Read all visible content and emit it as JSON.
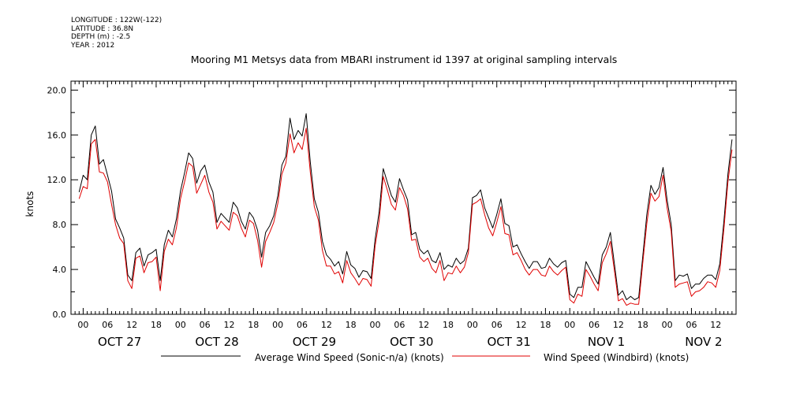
{
  "header": {
    "longitude": "LONGITUDE : 122W(-122)",
    "latitude": "LATITUDE : 36.8N",
    "depth": "DEPTH (m) : -2.5",
    "year": "YEAR : 2012"
  },
  "chart_data": {
    "type": "line",
    "title": "Mooring M1 Metsys data from MBARI instrument id 1397 at original sampling intervals",
    "ylabel": "knots",
    "xlabel": "",
    "ylim": [
      0,
      20.8
    ],
    "yticks": [
      "0.0",
      "4.0",
      "8.0",
      "12.0",
      "16.0",
      "20.0"
    ],
    "xlim_hours": [
      -3,
      161
    ],
    "hour_tick_labels": [
      "00",
      "06",
      "12",
      "18"
    ],
    "day_labels": [
      "OCT 27",
      "OCT 28",
      "OCT 29",
      "OCT 30",
      "OCT 31",
      "NOV  1",
      "NOV  2"
    ],
    "grid": false,
    "legend": "bottom",
    "series": [
      {
        "name": "Average Wind Speed (Sonic-n/a) (knots)",
        "color": "#000000",
        "points": [
          [
            -1,
            10.9
          ],
          [
            0,
            12.4
          ],
          [
            1,
            12.0
          ],
          [
            2,
            16.0
          ],
          [
            3,
            16.8
          ],
          [
            4,
            13.4
          ],
          [
            5,
            13.8
          ],
          [
            6,
            12.4
          ],
          [
            7,
            11.0
          ],
          [
            8,
            8.5
          ],
          [
            9,
            7.7
          ],
          [
            10,
            6.8
          ],
          [
            11,
            3.5
          ],
          [
            12,
            3.0
          ],
          [
            13,
            5.5
          ],
          [
            14,
            5.9
          ],
          [
            15,
            4.3
          ],
          [
            16,
            5.3
          ],
          [
            17,
            5.5
          ],
          [
            18,
            5.8
          ],
          [
            19,
            3.0
          ],
          [
            20,
            6.2
          ],
          [
            21,
            7.5
          ],
          [
            22,
            6.9
          ],
          [
            23,
            8.5
          ],
          [
            24,
            11.0
          ],
          [
            25,
            12.6
          ],
          [
            26,
            14.4
          ],
          [
            27,
            13.9
          ],
          [
            28,
            11.7
          ],
          [
            29,
            12.8
          ],
          [
            30,
            13.3
          ],
          [
            31,
            11.8
          ],
          [
            32,
            10.9
          ],
          [
            33,
            8.2
          ],
          [
            34,
            9.0
          ],
          [
            35,
            8.6
          ],
          [
            36,
            8.2
          ],
          [
            37,
            10.0
          ],
          [
            38,
            9.5
          ],
          [
            39,
            8.3
          ],
          [
            40,
            7.6
          ],
          [
            41,
            9.1
          ],
          [
            42,
            8.6
          ],
          [
            43,
            7.5
          ],
          [
            44,
            5.1
          ],
          [
            45,
            7.3
          ],
          [
            46,
            7.9
          ],
          [
            47,
            8.8
          ],
          [
            48,
            10.6
          ],
          [
            49,
            13.3
          ],
          [
            50,
            14.1
          ],
          [
            51,
            17.5
          ],
          [
            52,
            15.6
          ],
          [
            53,
            16.4
          ],
          [
            54,
            15.9
          ],
          [
            55,
            17.9
          ],
          [
            56,
            13.6
          ],
          [
            57,
            10.3
          ],
          [
            58,
            9.1
          ],
          [
            59,
            6.5
          ],
          [
            60,
            5.3
          ],
          [
            61,
            4.9
          ],
          [
            62,
            4.3
          ],
          [
            63,
            4.7
          ],
          [
            64,
            3.6
          ],
          [
            65,
            5.6
          ],
          [
            66,
            4.4
          ],
          [
            67,
            4.1
          ],
          [
            68,
            3.3
          ],
          [
            69,
            3.9
          ],
          [
            70,
            3.8
          ],
          [
            71,
            3.2
          ],
          [
            72,
            6.7
          ],
          [
            73,
            9.2
          ],
          [
            74,
            13.0
          ],
          [
            75,
            11.8
          ],
          [
            76,
            10.6
          ],
          [
            77,
            10.0
          ],
          [
            78,
            12.1
          ],
          [
            79,
            11.1
          ],
          [
            80,
            10.2
          ],
          [
            81,
            7.1
          ],
          [
            82,
            7.3
          ],
          [
            83,
            5.8
          ],
          [
            84,
            5.4
          ],
          [
            85,
            5.7
          ],
          [
            86,
            4.8
          ],
          [
            87,
            4.6
          ],
          [
            88,
            5.5
          ],
          [
            89,
            4.0
          ],
          [
            90,
            4.4
          ],
          [
            91,
            4.2
          ],
          [
            92,
            5.0
          ],
          [
            93,
            4.5
          ],
          [
            94,
            4.8
          ],
          [
            95,
            5.9
          ],
          [
            96,
            10.4
          ],
          [
            97,
            10.6
          ],
          [
            98,
            11.1
          ],
          [
            99,
            9.5
          ],
          [
            100,
            8.6
          ],
          [
            101,
            7.7
          ],
          [
            102,
            8.9
          ],
          [
            103,
            10.3
          ],
          [
            104,
            8.1
          ],
          [
            105,
            7.9
          ],
          [
            106,
            6.0
          ],
          [
            107,
            6.2
          ],
          [
            108,
            5.4
          ],
          [
            109,
            4.7
          ],
          [
            110,
            4.1
          ],
          [
            111,
            4.7
          ],
          [
            112,
            4.7
          ],
          [
            113,
            4.1
          ],
          [
            114,
            4.2
          ],
          [
            115,
            5.0
          ],
          [
            116,
            4.5
          ],
          [
            117,
            4.2
          ],
          [
            118,
            4.6
          ],
          [
            119,
            4.8
          ],
          [
            120,
            1.8
          ],
          [
            121,
            1.5
          ],
          [
            122,
            2.4
          ],
          [
            123,
            2.4
          ],
          [
            124,
            4.7
          ],
          [
            125,
            4.0
          ],
          [
            126,
            3.3
          ],
          [
            127,
            2.7
          ],
          [
            128,
            5.3
          ],
          [
            129,
            6.0
          ],
          [
            130,
            7.3
          ],
          [
            131,
            4.5
          ],
          [
            132,
            1.7
          ],
          [
            133,
            2.1
          ],
          [
            134,
            1.3
          ],
          [
            135,
            1.6
          ],
          [
            136,
            1.3
          ],
          [
            137,
            1.5
          ],
          [
            138,
            5.2
          ],
          [
            139,
            8.9
          ],
          [
            140,
            11.5
          ],
          [
            141,
            10.7
          ],
          [
            142,
            11.3
          ],
          [
            143,
            13.1
          ],
          [
            144,
            10.2
          ],
          [
            145,
            8.0
          ],
          [
            146,
            3.0
          ],
          [
            147,
            3.5
          ],
          [
            148,
            3.4
          ],
          [
            149,
            3.6
          ],
          [
            150,
            2.3
          ],
          [
            151,
            2.7
          ],
          [
            152,
            2.7
          ],
          [
            153,
            3.2
          ],
          [
            154,
            3.5
          ],
          [
            155,
            3.5
          ],
          [
            156,
            3.1
          ],
          [
            157,
            4.5
          ],
          [
            158,
            8.3
          ],
          [
            159,
            12.5
          ],
          [
            160,
            15.6
          ]
        ]
      },
      {
        "name": "Wind Speed (Windbird) (knots)",
        "color": "#e00000",
        "points": [
          [
            -1,
            10.3
          ],
          [
            0,
            11.4
          ],
          [
            1,
            11.2
          ],
          [
            2,
            15.2
          ],
          [
            3,
            15.6
          ],
          [
            4,
            12.7
          ],
          [
            5,
            12.6
          ],
          [
            6,
            11.8
          ],
          [
            7,
            9.8
          ],
          [
            8,
            8.0
          ],
          [
            9,
            6.8
          ],
          [
            10,
            6.3
          ],
          [
            11,
            3.0
          ],
          [
            12,
            2.3
          ],
          [
            13,
            5.0
          ],
          [
            14,
            5.2
          ],
          [
            15,
            3.7
          ],
          [
            16,
            4.6
          ],
          [
            17,
            4.7
          ],
          [
            18,
            5.1
          ],
          [
            19,
            2.1
          ],
          [
            20,
            5.6
          ],
          [
            21,
            6.7
          ],
          [
            22,
            6.2
          ],
          [
            23,
            7.7
          ],
          [
            24,
            10.3
          ],
          [
            25,
            11.8
          ],
          [
            26,
            13.5
          ],
          [
            27,
            13.2
          ],
          [
            28,
            10.8
          ],
          [
            29,
            11.6
          ],
          [
            30,
            12.4
          ],
          [
            31,
            10.9
          ],
          [
            32,
            10.0
          ],
          [
            33,
            7.6
          ],
          [
            34,
            8.3
          ],
          [
            35,
            7.9
          ],
          [
            36,
            7.5
          ],
          [
            37,
            9.1
          ],
          [
            38,
            8.8
          ],
          [
            39,
            7.7
          ],
          [
            40,
            6.9
          ],
          [
            41,
            8.4
          ],
          [
            42,
            8.1
          ],
          [
            43,
            6.6
          ],
          [
            44,
            4.2
          ],
          [
            45,
            6.5
          ],
          [
            46,
            7.3
          ],
          [
            47,
            8.2
          ],
          [
            48,
            9.9
          ],
          [
            49,
            12.5
          ],
          [
            50,
            13.5
          ],
          [
            51,
            16.1
          ],
          [
            52,
            14.4
          ],
          [
            53,
            15.3
          ],
          [
            54,
            14.7
          ],
          [
            55,
            16.6
          ],
          [
            56,
            12.7
          ],
          [
            57,
            9.6
          ],
          [
            58,
            8.4
          ],
          [
            59,
            5.7
          ],
          [
            60,
            4.3
          ],
          [
            61,
            4.3
          ],
          [
            62,
            3.6
          ],
          [
            63,
            3.8
          ],
          [
            64,
            2.8
          ],
          [
            65,
            4.8
          ],
          [
            66,
            3.7
          ],
          [
            67,
            3.2
          ],
          [
            68,
            2.6
          ],
          [
            69,
            3.2
          ],
          [
            70,
            3.1
          ],
          [
            71,
            2.5
          ],
          [
            72,
            6.1
          ],
          [
            73,
            8.4
          ],
          [
            74,
            12.3
          ],
          [
            75,
            11.1
          ],
          [
            76,
            9.8
          ],
          [
            77,
            9.3
          ],
          [
            78,
            11.3
          ],
          [
            79,
            10.6
          ],
          [
            80,
            9.4
          ],
          [
            81,
            6.6
          ],
          [
            82,
            6.7
          ],
          [
            83,
            5.1
          ],
          [
            84,
            4.7
          ],
          [
            85,
            5.0
          ],
          [
            86,
            4.1
          ],
          [
            87,
            3.7
          ],
          [
            88,
            4.8
          ],
          [
            89,
            3.0
          ],
          [
            90,
            3.7
          ],
          [
            91,
            3.6
          ],
          [
            92,
            4.3
          ],
          [
            93,
            3.7
          ],
          [
            94,
            4.2
          ],
          [
            95,
            5.5
          ],
          [
            96,
            9.8
          ],
          [
            97,
            10.0
          ],
          [
            98,
            10.3
          ],
          [
            99,
            8.9
          ],
          [
            100,
            7.7
          ],
          [
            101,
            7.0
          ],
          [
            102,
            8.2
          ],
          [
            103,
            9.6
          ],
          [
            104,
            7.2
          ],
          [
            105,
            7.1
          ],
          [
            106,
            5.3
          ],
          [
            107,
            5.5
          ],
          [
            108,
            4.8
          ],
          [
            109,
            4.0
          ],
          [
            110,
            3.5
          ],
          [
            111,
            4.0
          ],
          [
            112,
            4.0
          ],
          [
            113,
            3.5
          ],
          [
            114,
            3.4
          ],
          [
            115,
            4.3
          ],
          [
            116,
            3.8
          ],
          [
            117,
            3.5
          ],
          [
            118,
            3.9
          ],
          [
            119,
            4.2
          ],
          [
            120,
            1.3
          ],
          [
            121,
            1.0
          ],
          [
            122,
            1.8
          ],
          [
            123,
            1.6
          ],
          [
            124,
            4.0
          ],
          [
            125,
            3.4
          ],
          [
            126,
            2.7
          ],
          [
            127,
            2.1
          ],
          [
            128,
            4.6
          ],
          [
            129,
            5.4
          ],
          [
            130,
            6.5
          ],
          [
            131,
            3.9
          ],
          [
            132,
            1.2
          ],
          [
            133,
            1.4
          ],
          [
            134,
            0.8
          ],
          [
            135,
            1.0
          ],
          [
            136,
            0.9
          ],
          [
            137,
            0.9
          ],
          [
            138,
            4.6
          ],
          [
            139,
            8.1
          ],
          [
            140,
            10.8
          ],
          [
            141,
            10.1
          ],
          [
            142,
            10.5
          ],
          [
            143,
            12.4
          ],
          [
            144,
            9.5
          ],
          [
            145,
            7.4
          ],
          [
            146,
            2.4
          ],
          [
            147,
            2.7
          ],
          [
            148,
            2.8
          ],
          [
            149,
            2.9
          ],
          [
            150,
            1.6
          ],
          [
            151,
            2.0
          ],
          [
            152,
            2.1
          ],
          [
            153,
            2.4
          ],
          [
            154,
            2.9
          ],
          [
            155,
            2.8
          ],
          [
            156,
            2.4
          ],
          [
            157,
            3.9
          ],
          [
            158,
            7.6
          ],
          [
            159,
            11.8
          ],
          [
            160,
            14.7
          ]
        ]
      }
    ]
  }
}
